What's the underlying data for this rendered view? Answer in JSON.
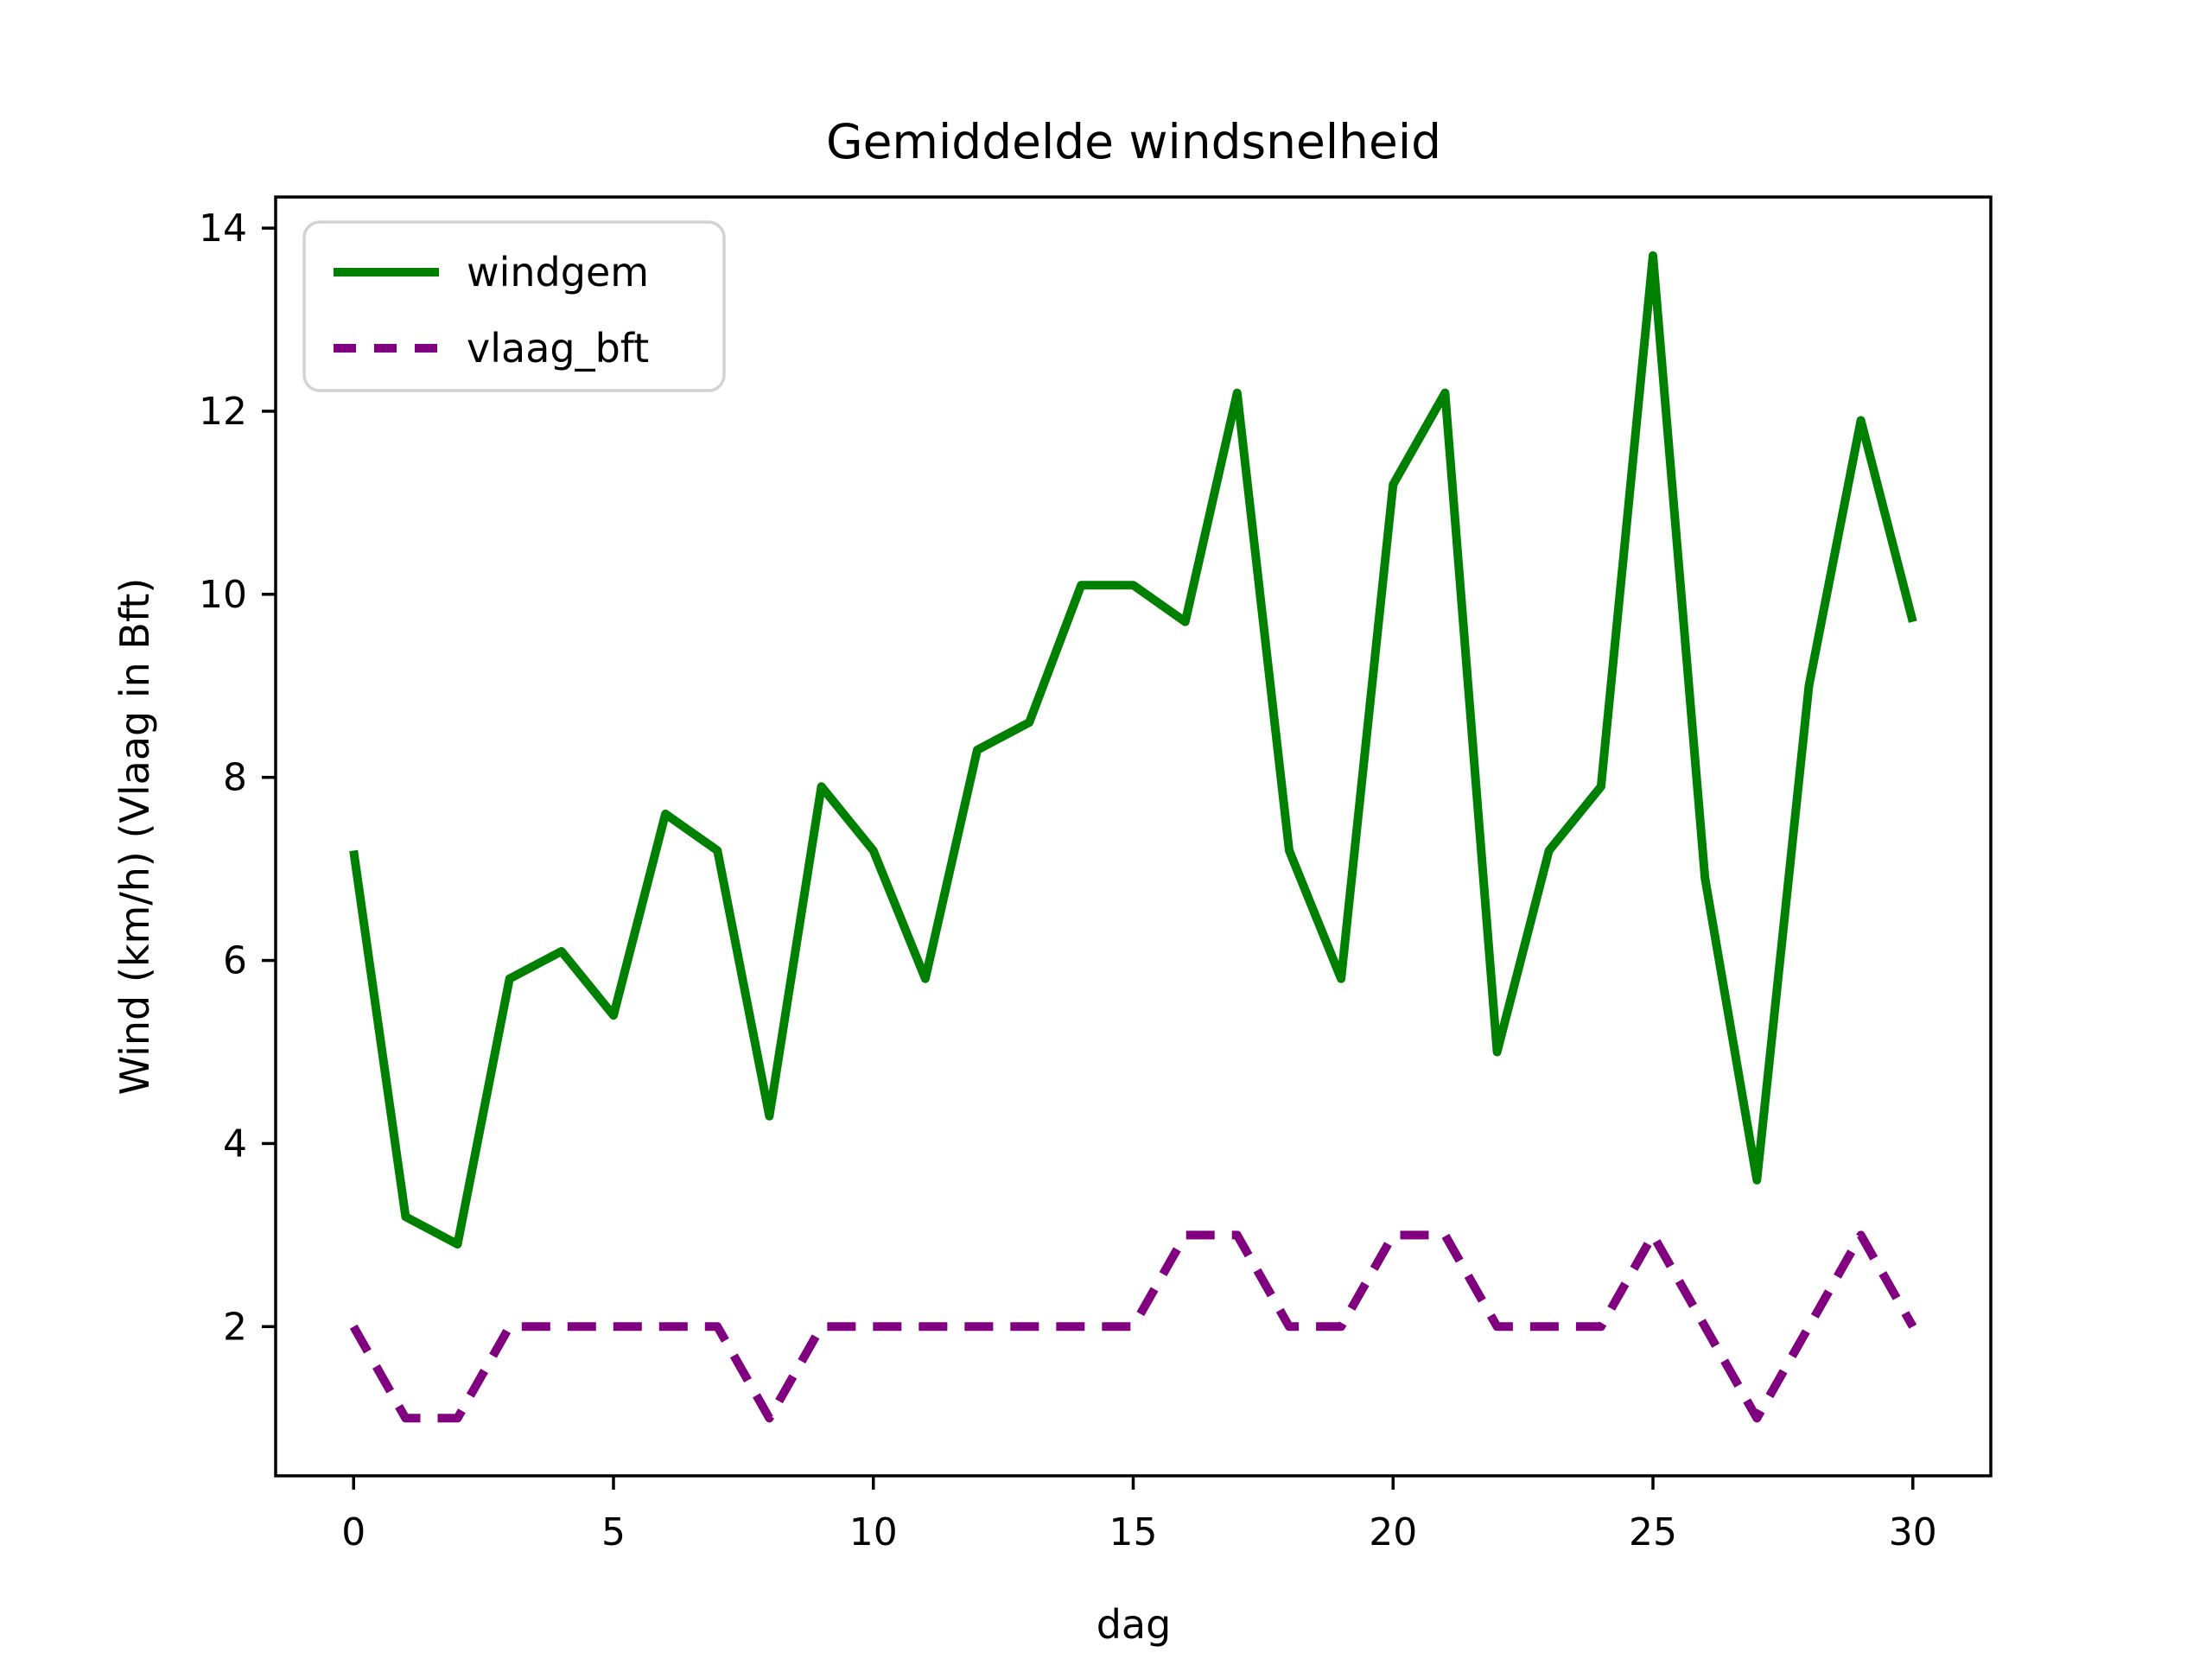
{
  "chart_data": {
    "type": "line",
    "title": "Gemiddelde windsnelheid",
    "xlabel": "dag",
    "ylabel": "Wind (km/h) (Vlaag in Bft)",
    "x": [
      0,
      1,
      2,
      3,
      4,
      5,
      6,
      7,
      8,
      9,
      10,
      11,
      12,
      13,
      14,
      15,
      16,
      17,
      18,
      19,
      20,
      21,
      22,
      23,
      24,
      25,
      26,
      27,
      28,
      29,
      30
    ],
    "series": [
      {
        "name": "windgem",
        "color": "#008000",
        "style": "solid",
        "values": [
          7.2,
          3.2,
          2.9,
          5.8,
          6.1,
          5.4,
          7.6,
          7.2,
          4.3,
          7.9,
          7.2,
          5.8,
          8.3,
          8.6,
          10.1,
          10.1,
          9.7,
          12.2,
          7.2,
          5.8,
          11.2,
          12.2,
          5.0,
          7.2,
          7.9,
          13.7,
          6.9,
          3.6,
          9.0,
          11.9,
          9.7
        ]
      },
      {
        "name": "vlaag_bft",
        "color": "#800080",
        "style": "dashed",
        "values": [
          2,
          1,
          1,
          2,
          2,
          2,
          2,
          2,
          1,
          2,
          2,
          2,
          2,
          2,
          2,
          2,
          3,
          3,
          2,
          2,
          3,
          3,
          2,
          2,
          2,
          3,
          2,
          1,
          2,
          3,
          2
        ]
      }
    ],
    "xticks": [
      0,
      5,
      10,
      15,
      20,
      25,
      30
    ],
    "yticks": [
      2,
      4,
      6,
      8,
      10,
      12,
      14
    ],
    "xlim": [
      -1.5,
      31.5
    ],
    "ylim": [
      0.37,
      14.34
    ],
    "grid": false,
    "legend_position": "upper left",
    "frame_color": "#000000",
    "legend_border_color": "#d3d3d3"
  }
}
